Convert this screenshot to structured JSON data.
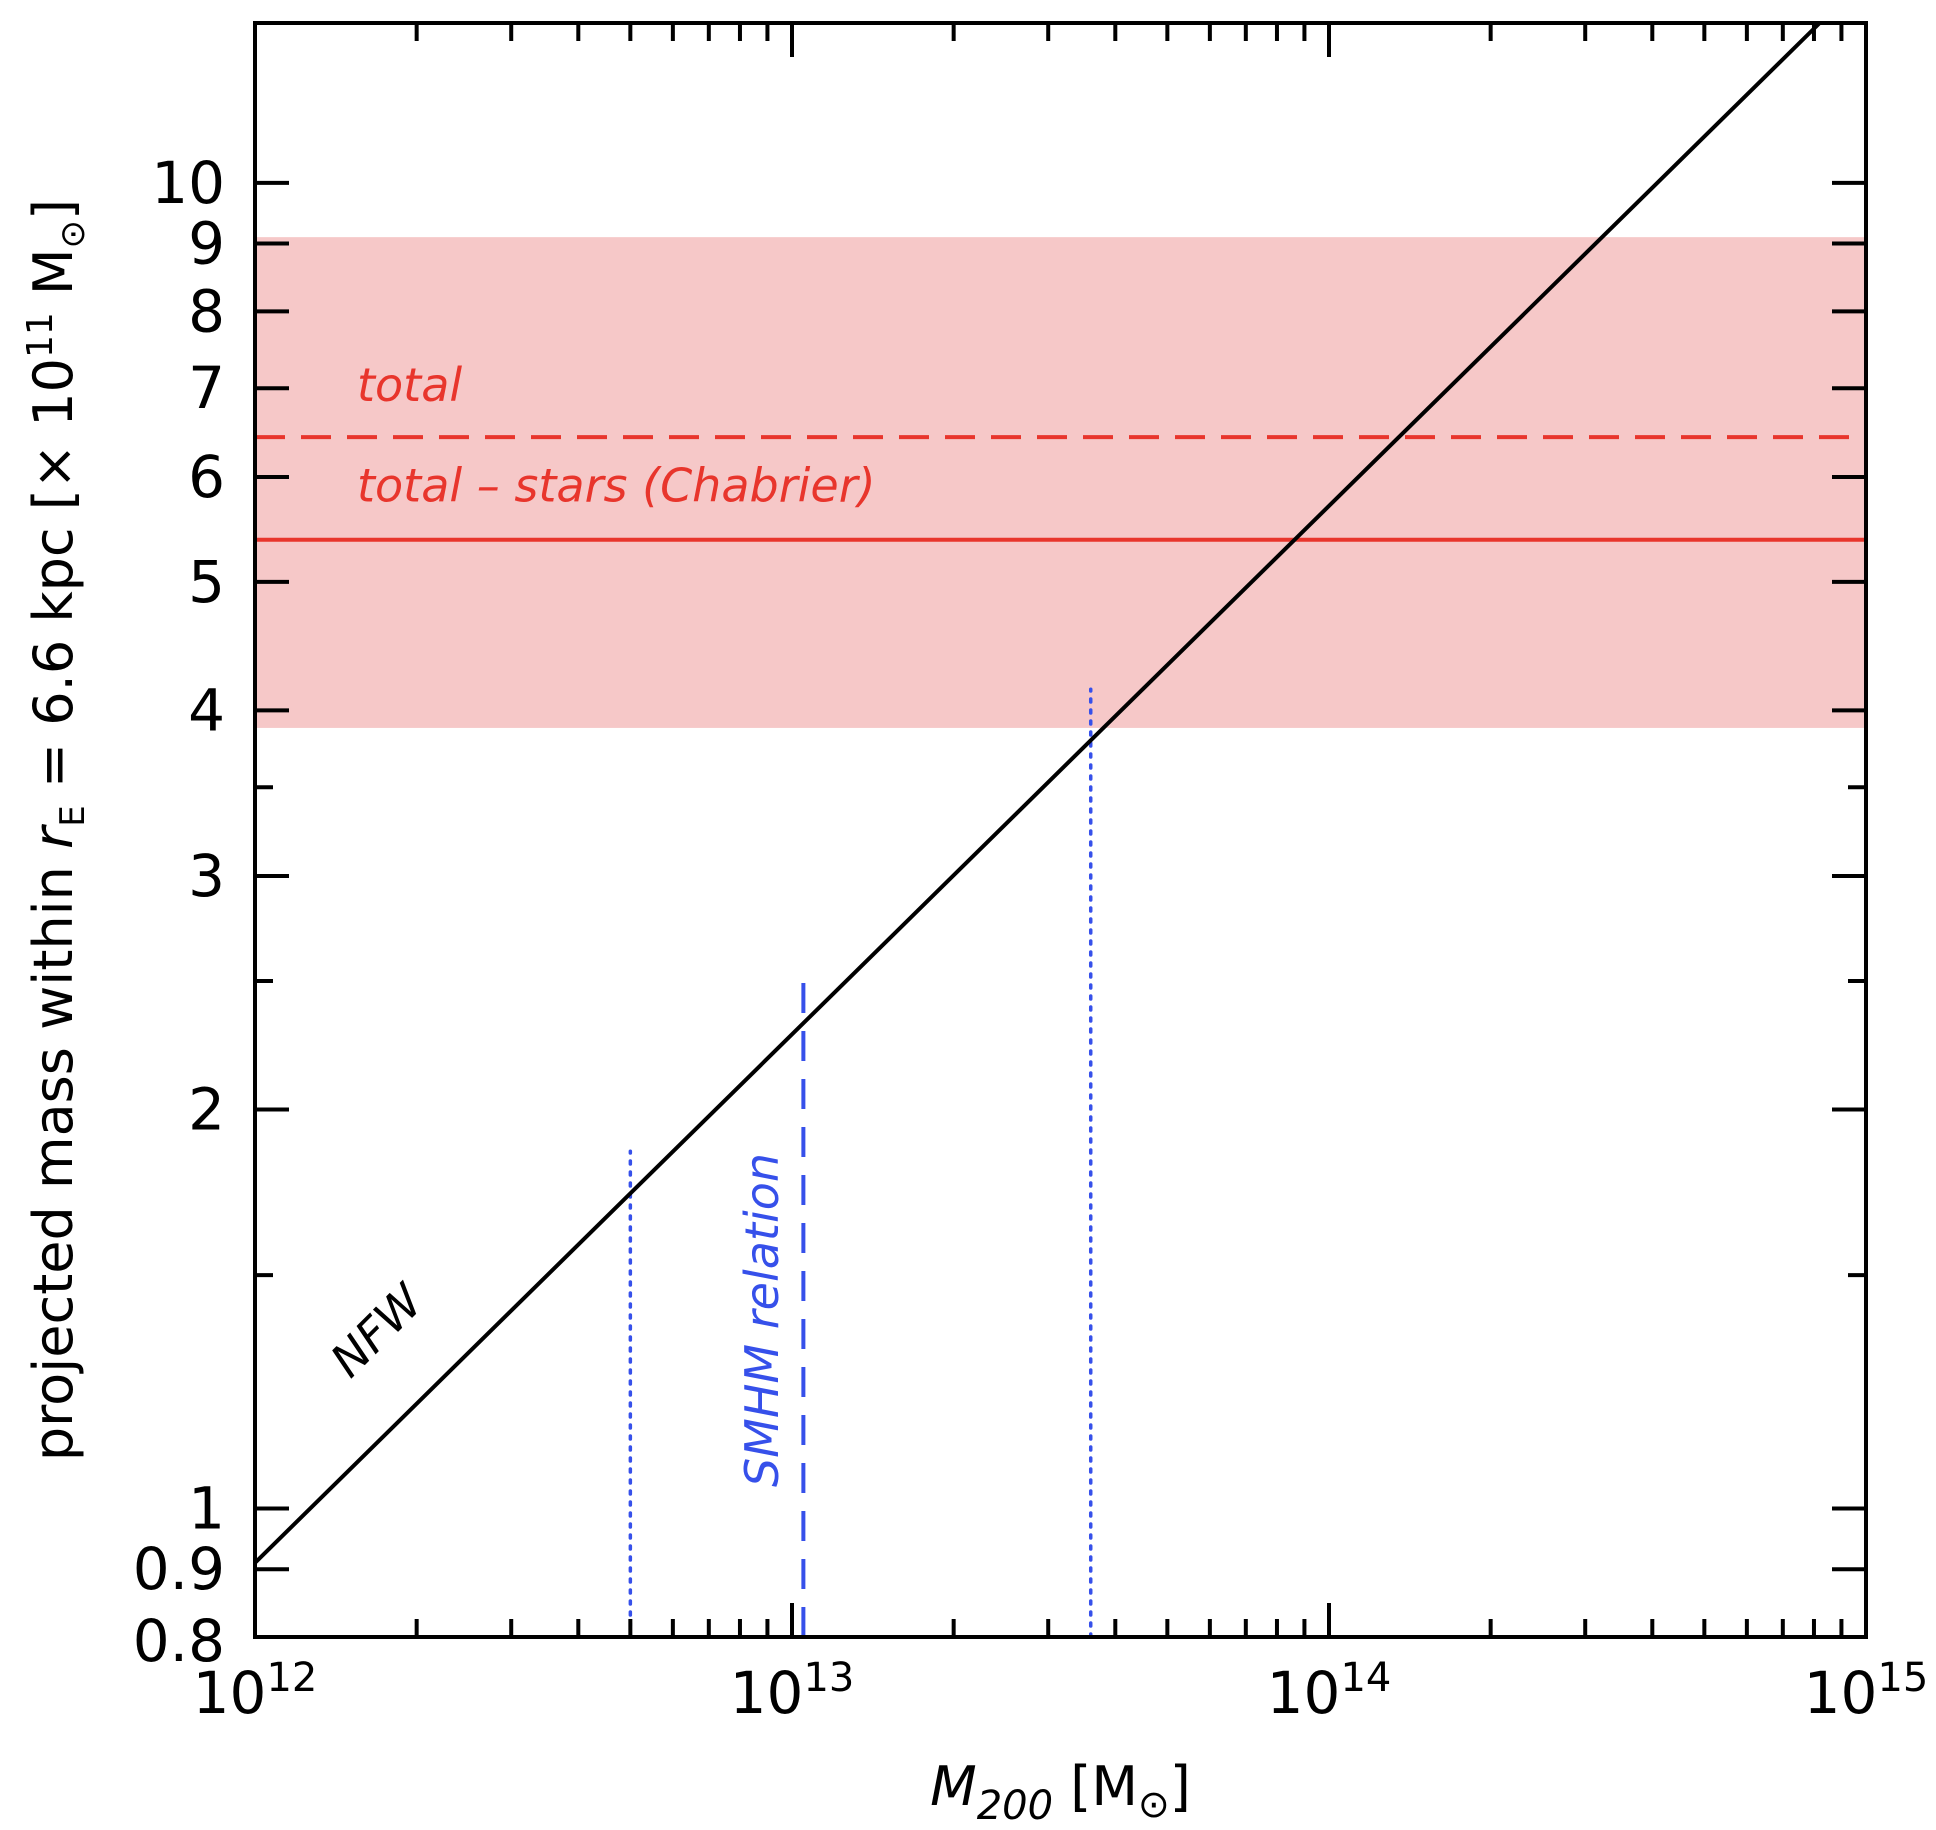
{
  "chart_data": {
    "type": "line",
    "x_scale": "log",
    "y_scale": "log",
    "xlim": [
      1000000000000.0,
      1000000000000000.0
    ],
    "ylim": [
      0.8,
      13.2
    ],
    "x_ticks": [
      {
        "value": 1000000000000.0,
        "base": "10",
        "exp": "12"
      },
      {
        "value": 10000000000000.0,
        "base": "10",
        "exp": "13"
      },
      {
        "value": 100000000000000.0,
        "base": "10",
        "exp": "14"
      },
      {
        "value": 1000000000000000.0,
        "base": "10",
        "exp": "15"
      }
    ],
    "y_ticks": [
      {
        "value": 0.8,
        "label": "0.8"
      },
      {
        "value": 0.9,
        "label": "0.9"
      },
      {
        "value": 1,
        "label": "1"
      },
      {
        "value": 2,
        "label": "2"
      },
      {
        "value": 3,
        "label": "3"
      },
      {
        "value": 4,
        "label": "4"
      },
      {
        "value": 5,
        "label": "5"
      },
      {
        "value": 6,
        "label": "6"
      },
      {
        "value": 7,
        "label": "7"
      },
      {
        "value": 8,
        "label": "8"
      },
      {
        "value": 9,
        "label": "9"
      },
      {
        "value": 10,
        "label": "10"
      }
    ],
    "y_minor_ticks": [
      1.5,
      2.5,
      3.5
    ],
    "xlabel": {
      "main": "M",
      "sub": "200",
      "unit_open": " [M",
      "unit_sym": "⊙",
      "unit_close": "]"
    },
    "ylabel": {
      "pre": "projected mass within ",
      "r": "r",
      "r_sub": "E",
      "post": " = 6.6 kpc  [× 10",
      "exp": "11",
      "unit": " M",
      "unit_sym": "⊙",
      "close": "]"
    },
    "band": {
      "ymin": 3.88,
      "ymax": 9.1,
      "color": "#f6c8c8"
    },
    "series": [
      {
        "name": "NFW",
        "color": "#000000",
        "points": [
          [
            1000000000000.0,
            0.91
          ],
          [
            820000000000000.0,
            13.2
          ]
        ]
      }
    ],
    "hlines": [
      {
        "name": "total",
        "y": 6.43,
        "color": "#e8352c",
        "style": "dashed",
        "label": "total"
      },
      {
        "name": "total - stars (Chabrier)",
        "y": 5.38,
        "color": "#e8352c",
        "style": "solid",
        "label": "total  –  stars (Chabrier)"
      }
    ],
    "vlines": [
      {
        "name": "SMHM relation",
        "x": 10500000000000.0,
        "y_top": 2.55,
        "color": "#3650ea",
        "style": "dashed",
        "label": "SMHM relation"
      },
      {
        "name": "SMHM lower",
        "x": 5000000000000.0,
        "y_top": 1.86,
        "color": "#3650ea",
        "style": "dotted"
      },
      {
        "name": "SMHM upper",
        "x": 36000000000000.0,
        "y_top": 4.15,
        "color": "#3650ea",
        "style": "dotted"
      }
    ],
    "annotations": [
      {
        "text": "NFW",
        "color": "#000000"
      }
    ]
  }
}
